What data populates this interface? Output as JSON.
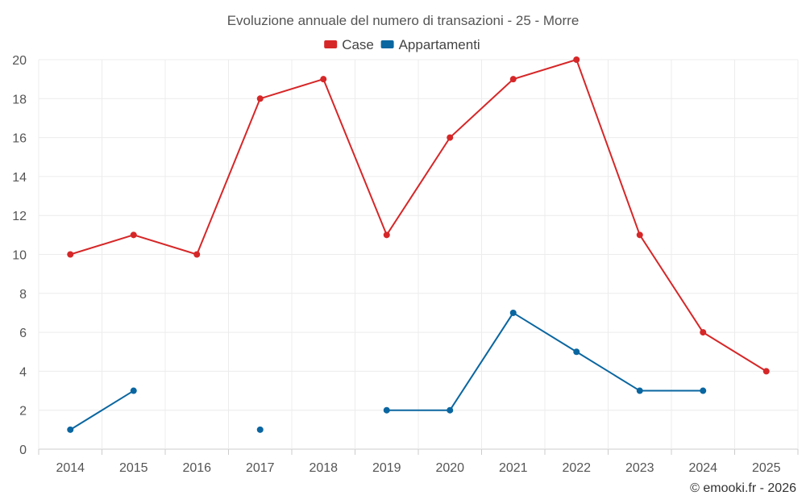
{
  "chart_data": {
    "type": "line",
    "title": "Evoluzione annuale del numero di transazioni - 25 - Morre",
    "categories": [
      "2014",
      "2015",
      "2016",
      "2017",
      "2018",
      "2019",
      "2020",
      "2021",
      "2022",
      "2023",
      "2024",
      "2025"
    ],
    "series": [
      {
        "name": "Case",
        "color": "#d62728",
        "values": [
          10,
          11,
          10,
          18,
          19,
          11,
          16,
          19,
          20,
          11,
          6,
          4
        ]
      },
      {
        "name": "Appartamenti",
        "color": "#0a66a0",
        "values": [
          1,
          3,
          null,
          1,
          null,
          2,
          2,
          7,
          5,
          3,
          3,
          null
        ]
      }
    ],
    "y_ticks": [
      "0",
      "2",
      "4",
      "6",
      "8",
      "10",
      "12",
      "14",
      "16",
      "18",
      "20"
    ],
    "ylim": [
      0,
      20
    ],
    "grid": true,
    "legend_position": "top-center",
    "xlabel": "",
    "ylabel": ""
  },
  "credit": "© emooki.fr - 2026"
}
